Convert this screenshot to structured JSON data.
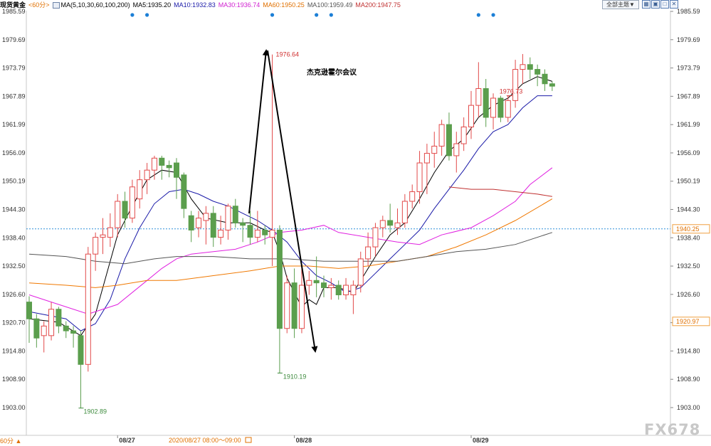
{
  "header": {
    "symbol": "现货黄金",
    "period": "<60分>",
    "ma_params": "MA(5,10,30,60,100,200)",
    "ma5": "MA5:1935.20",
    "ma10": "MA10:1932.83",
    "ma30": "MA30:1936.74",
    "ma60": "MA60:1950.25",
    "ma100": "MA100:1959.49",
    "ma200": "MA200:1947.75",
    "theme_button": "全部主题▼",
    "icon_names": [
      "grid-icon",
      "window-icon",
      "maximize-icon",
      "close-icon"
    ]
  },
  "bottom": {
    "period_button": "60分 ▲",
    "cursor_time": "2020/08/27 08:00～09:00",
    "calendar_icon": "calendar-icon",
    "watermark": "FX678"
  },
  "colors": {
    "up": "#e24a4a",
    "down": "#5b9e4d",
    "ma5": "#000000",
    "ma10": "#1a1aa8",
    "ma30": "#e020e0",
    "ma60": "#f07800",
    "ma100": "#555555",
    "ma200": "#c03030",
    "price_line": "#2e8fd8",
    "axis_text": "#333333"
  },
  "chart_data": {
    "type": "candlestick",
    "y_ticks": [
      "1985.59",
      "1979.69",
      "1973.79",
      "1967.89",
      "1961.99",
      "1956.09",
      "1950.19",
      "1944.30",
      "1938.40",
      "1932.50",
      "1926.60",
      "1920.70",
      "1914.80",
      "1908.90",
      "1903.00"
    ],
    "ylim": [
      1903.0,
      1985.59
    ],
    "x_labels": [
      {
        "label": "08/27",
        "index": 12
      },
      {
        "label": "08/28",
        "index": 36
      },
      {
        "label": "08/29",
        "index": 60
      }
    ],
    "current_price": {
      "label": "1940.25",
      "value": 1940.25
    },
    "side_badge": {
      "label": "1920.97",
      "value": 1920.97
    },
    "annotations": {
      "high": {
        "label": "1976.64",
        "index": 33
      },
      "high2": {
        "label": "1976.73",
        "index": 65
      },
      "low": {
        "label": "1902.89",
        "index": 7
      },
      "low2": {
        "label": "1910.19",
        "index": 34
      },
      "event_text": "杰克逊霍尔会议"
    },
    "event_markers": [
      14,
      16,
      33,
      39,
      41,
      61,
      63
    ],
    "candles": [
      {
        "o": 1925.0,
        "c": 1921.5,
        "h": 1926.2,
        "l": 1916.5
      },
      {
        "o": 1921.5,
        "c": 1917.5,
        "h": 1922.5,
        "l": 1915.5
      },
      {
        "o": 1918.0,
        "c": 1920.0,
        "h": 1921.0,
        "l": 1914.5
      },
      {
        "o": 1918.0,
        "c": 1923.5,
        "h": 1925.0,
        "l": 1917.0
      },
      {
        "o": 1923.5,
        "c": 1920.0,
        "h": 1924.0,
        "l": 1918.5
      },
      {
        "o": 1920.0,
        "c": 1919.0,
        "h": 1921.0,
        "l": 1917.5
      },
      {
        "o": 1919.0,
        "c": 1918.5,
        "h": 1920.0,
        "l": 1915.5
      },
      {
        "o": 1918.0,
        "c": 1912.0,
        "h": 1919.0,
        "l": 1902.9
      },
      {
        "o": 1912.0,
        "c": 1935.0,
        "h": 1936.5,
        "l": 1910.5
      },
      {
        "o": 1935.0,
        "c": 1938.5,
        "h": 1939.5,
        "l": 1931.5
      },
      {
        "o": 1938.5,
        "c": 1939.0,
        "h": 1942.5,
        "l": 1935.0
      },
      {
        "o": 1938.5,
        "c": 1940.5,
        "h": 1943.5,
        "l": 1936.5
      },
      {
        "o": 1940.5,
        "c": 1946.0,
        "h": 1947.5,
        "l": 1938.5
      },
      {
        "o": 1946.0,
        "c": 1942.5,
        "h": 1948.0,
        "l": 1940.5
      },
      {
        "o": 1942.5,
        "c": 1949.0,
        "h": 1950.5,
        "l": 1941.5
      },
      {
        "o": 1946.5,
        "c": 1950.5,
        "h": 1952.5,
        "l": 1944.5
      },
      {
        "o": 1950.5,
        "c": 1952.5,
        "h": 1954.0,
        "l": 1947.5
      },
      {
        "o": 1952.5,
        "c": 1955.0,
        "h": 1955.5,
        "l": 1950.5
      },
      {
        "o": 1955.0,
        "c": 1953.5,
        "h": 1955.5,
        "l": 1950.5
      },
      {
        "o": 1953.5,
        "c": 1953.0,
        "h": 1954.5,
        "l": 1951.0
      },
      {
        "o": 1954.0,
        "c": 1951.0,
        "h": 1955.0,
        "l": 1946.5
      },
      {
        "o": 1951.5,
        "c": 1944.5,
        "h": 1952.0,
        "l": 1942.5
      },
      {
        "o": 1943.0,
        "c": 1940.0,
        "h": 1944.0,
        "l": 1937.5
      },
      {
        "o": 1940.5,
        "c": 1942.5,
        "h": 1944.0,
        "l": 1938.5
      },
      {
        "o": 1942.0,
        "c": 1943.5,
        "h": 1945.0,
        "l": 1937.0
      },
      {
        "o": 1943.5,
        "c": 1938.5,
        "h": 1945.0,
        "l": 1936.5
      },
      {
        "o": 1938.5,
        "c": 1940.0,
        "h": 1943.0,
        "l": 1937.0
      },
      {
        "o": 1940.0,
        "c": 1945.0,
        "h": 1945.5,
        "l": 1938.0
      },
      {
        "o": 1945.0,
        "c": 1941.5,
        "h": 1946.5,
        "l": 1940.5
      },
      {
        "o": 1941.5,
        "c": 1941.0,
        "h": 1942.5,
        "l": 1937.5
      },
      {
        "o": 1941.0,
        "c": 1938.5,
        "h": 1944.0,
        "l": 1937.0
      },
      {
        "o": 1938.5,
        "c": 1940.0,
        "h": 1944.0,
        "l": 1937.5
      },
      {
        "o": 1940.0,
        "c": 1939.0,
        "h": 1941.0,
        "l": 1937.0
      },
      {
        "o": 1938.5,
        "c": 1940.0,
        "h": 1976.6,
        "l": 1932.5
      },
      {
        "o": 1940.0,
        "c": 1919.5,
        "h": 1941.0,
        "l": 1910.2
      },
      {
        "o": 1919.5,
        "c": 1929.0,
        "h": 1930.5,
        "l": 1918.5
      },
      {
        "o": 1929.0,
        "c": 1919.5,
        "h": 1932.0,
        "l": 1917.5
      },
      {
        "o": 1919.5,
        "c": 1928.5,
        "h": 1932.5,
        "l": 1918.5
      },
      {
        "o": 1928.5,
        "c": 1929.5,
        "h": 1931.5,
        "l": 1926.5
      },
      {
        "o": 1929.5,
        "c": 1929.0,
        "h": 1934.5,
        "l": 1926.0
      },
      {
        "o": 1929.0,
        "c": 1928.0,
        "h": 1930.5,
        "l": 1926.0
      },
      {
        "o": 1928.0,
        "c": 1928.5,
        "h": 1930.0,
        "l": 1925.5
      },
      {
        "o": 1928.5,
        "c": 1926.5,
        "h": 1929.5,
        "l": 1925.5
      },
      {
        "o": 1926.5,
        "c": 1928.5,
        "h": 1930.0,
        "l": 1925.5
      },
      {
        "o": 1926.5,
        "c": 1928.5,
        "h": 1929.5,
        "l": 1922.5
      },
      {
        "o": 1928.5,
        "c": 1934.0,
        "h": 1935.5,
        "l": 1927.0
      },
      {
        "o": 1934.0,
        "c": 1936.5,
        "h": 1939.5,
        "l": 1932.5
      },
      {
        "o": 1936.5,
        "c": 1940.5,
        "h": 1941.5,
        "l": 1934.5
      },
      {
        "o": 1940.5,
        "c": 1942.0,
        "h": 1943.0,
        "l": 1938.5
      },
      {
        "o": 1942.0,
        "c": 1941.0,
        "h": 1945.5,
        "l": 1939.5
      },
      {
        "o": 1940.5,
        "c": 1941.5,
        "h": 1944.5,
        "l": 1939.0
      },
      {
        "o": 1941.5,
        "c": 1946.0,
        "h": 1947.5,
        "l": 1940.5
      },
      {
        "o": 1946.0,
        "c": 1948.0,
        "h": 1949.5,
        "l": 1944.5
      },
      {
        "o": 1948.0,
        "c": 1954.0,
        "h": 1956.5,
        "l": 1945.5
      },
      {
        "o": 1954.0,
        "c": 1956.0,
        "h": 1958.0,
        "l": 1947.5
      },
      {
        "o": 1956.0,
        "c": 1957.5,
        "h": 1960.5,
        "l": 1953.0
      },
      {
        "o": 1957.5,
        "c": 1962.0,
        "h": 1963.0,
        "l": 1955.5
      },
      {
        "o": 1962.0,
        "c": 1955.5,
        "h": 1964.5,
        "l": 1954.5
      },
      {
        "o": 1955.5,
        "c": 1958.0,
        "h": 1960.5,
        "l": 1952.0
      },
      {
        "o": 1958.0,
        "c": 1961.5,
        "h": 1963.5,
        "l": 1956.5
      },
      {
        "o": 1961.5,
        "c": 1966.0,
        "h": 1969.0,
        "l": 1959.0
      },
      {
        "o": 1966.0,
        "c": 1969.5,
        "h": 1975.0,
        "l": 1963.5
      },
      {
        "o": 1969.5,
        "c": 1963.5,
        "h": 1971.5,
        "l": 1961.5
      },
      {
        "o": 1963.5,
        "c": 1967.5,
        "h": 1968.5,
        "l": 1961.0
      },
      {
        "o": 1967.5,
        "c": 1963.5,
        "h": 1968.0,
        "l": 1962.5
      },
      {
        "o": 1963.5,
        "c": 1967.0,
        "h": 1968.0,
        "l": 1962.5
      },
      {
        "o": 1967.0,
        "c": 1973.5,
        "h": 1975.5,
        "l": 1965.5
      },
      {
        "o": 1973.5,
        "c": 1974.5,
        "h": 1976.7,
        "l": 1970.5
      },
      {
        "o": 1974.5,
        "c": 1973.5,
        "h": 1976.0,
        "l": 1971.5
      },
      {
        "o": 1973.5,
        "c": 1972.5,
        "h": 1974.5,
        "l": 1970.0
      },
      {
        "o": 1972.5,
        "c": 1970.5,
        "h": 1973.5,
        "l": 1969.0
      },
      {
        "o": 1970.5,
        "c": 1970.0,
        "h": 1971.0,
        "l": 1969.0
      }
    ],
    "ma_lines": {
      "ma5": [
        [
          0,
          1921.5
        ],
        [
          4,
          1920.8
        ],
        [
          7,
          1918.0
        ],
        [
          9,
          1922.5
        ],
        [
          12,
          1939.0
        ],
        [
          14,
          1945.0
        ],
        [
          16,
          1950.5
        ],
        [
          18,
          1952.5
        ],
        [
          20,
          1952.0
        ],
        [
          22,
          1946.5
        ],
        [
          24,
          1942.5
        ],
        [
          27,
          1941.5
        ],
        [
          30,
          1941.5
        ],
        [
          32,
          1940.0
        ],
        [
          33,
          1939.5
        ],
        [
          34,
          1935.5
        ],
        [
          35,
          1930.0
        ],
        [
          36,
          1927.0
        ],
        [
          37,
          1924.0
        ],
        [
          38,
          1925.5
        ],
        [
          39,
          1924.5
        ],
        [
          40,
          1928.0
        ],
        [
          42,
          1928.0
        ],
        [
          44,
          1927.0
        ],
        [
          45,
          1929.5
        ],
        [
          47,
          1934.5
        ],
        [
          49,
          1939.0
        ],
        [
          51,
          1941.5
        ],
        [
          53,
          1946.5
        ],
        [
          55,
          1952.0
        ],
        [
          57,
          1956.5
        ],
        [
          59,
          1959.0
        ],
        [
          61,
          1963.5
        ],
        [
          63,
          1966.0
        ],
        [
          65,
          1967.5
        ],
        [
          67,
          1970.5
        ],
        [
          69,
          1972.0
        ],
        [
          71,
          1971.0
        ]
      ],
      "ma10": [
        [
          0,
          1923.0
        ],
        [
          5,
          1921.5
        ],
        [
          7,
          1919.0
        ],
        [
          9,
          1920.5
        ],
        [
          11,
          1925.5
        ],
        [
          13,
          1934.0
        ],
        [
          15,
          1940.5
        ],
        [
          17,
          1945.5
        ],
        [
          19,
          1948.0
        ],
        [
          21,
          1948.5
        ],
        [
          23,
          1947.5
        ],
        [
          25,
          1946.0
        ],
        [
          27,
          1945.0
        ],
        [
          29,
          1943.5
        ],
        [
          31,
          1942.0
        ],
        [
          33,
          1940.0
        ],
        [
          35,
          1937.5
        ],
        [
          37,
          1933.5
        ],
        [
          39,
          1930.5
        ],
        [
          41,
          1929.0
        ],
        [
          43,
          1927.0
        ],
        [
          45,
          1928.0
        ],
        [
          47,
          1931.0
        ],
        [
          49,
          1934.0
        ],
        [
          51,
          1937.0
        ],
        [
          53,
          1940.0
        ],
        [
          55,
          1944.5
        ],
        [
          57,
          1948.5
        ],
        [
          59,
          1952.5
        ],
        [
          61,
          1957.0
        ],
        [
          63,
          1960.5
        ],
        [
          65,
          1962.0
        ],
        [
          67,
          1965.5
        ],
        [
          69,
          1968.0
        ],
        [
          71,
          1968.0
        ]
      ],
      "ma30": [
        [
          0,
          1926.5
        ],
        [
          4,
          1924.5
        ],
        [
          8,
          1922.5
        ],
        [
          12,
          1924.5
        ],
        [
          16,
          1929.5
        ],
        [
          18,
          1932.0
        ],
        [
          20,
          1934.0
        ],
        [
          22,
          1935.0
        ],
        [
          25,
          1935.5
        ],
        [
          28,
          1936.0
        ],
        [
          31,
          1937.5
        ],
        [
          34,
          1939.5
        ],
        [
          37,
          1940.0
        ],
        [
          40,
          1941.0
        ],
        [
          42,
          1939.5
        ],
        [
          46,
          1938.5
        ],
        [
          50,
          1937.5
        ],
        [
          53,
          1937.0
        ],
        [
          56,
          1939.0
        ],
        [
          60,
          1940.5
        ],
        [
          63,
          1943.0
        ],
        [
          66,
          1946.0
        ],
        [
          68,
          1949.5
        ],
        [
          71,
          1953.0
        ]
      ],
      "ma60": [
        [
          0,
          1929.0
        ],
        [
          5,
          1928.5
        ],
        [
          9,
          1928.0
        ],
        [
          12,
          1928.5
        ],
        [
          16,
          1929.5
        ],
        [
          20,
          1929.5
        ],
        [
          25,
          1930.5
        ],
        [
          30,
          1931.5
        ],
        [
          34,
          1932.5
        ],
        [
          38,
          1932.5
        ],
        [
          42,
          1932.0
        ],
        [
          46,
          1932.5
        ],
        [
          50,
          1933.5
        ],
        [
          54,
          1934.5
        ],
        [
          58,
          1936.5
        ],
        [
          62,
          1939.0
        ],
        [
          66,
          1942.0
        ],
        [
          71,
          1946.5
        ]
      ],
      "ma100": [
        [
          0,
          1935.0
        ],
        [
          5,
          1934.5
        ],
        [
          9,
          1933.5
        ],
        [
          13,
          1933.0
        ],
        [
          17,
          1934.0
        ],
        [
          20,
          1934.5
        ],
        [
          25,
          1934.5
        ],
        [
          30,
          1934.0
        ],
        [
          35,
          1934.0
        ],
        [
          40,
          1933.5
        ],
        [
          45,
          1933.5
        ],
        [
          50,
          1933.5
        ],
        [
          54,
          1934.5
        ],
        [
          58,
          1935.5
        ],
        [
          62,
          1936.0
        ],
        [
          66,
          1937.0
        ],
        [
          71,
          1939.5
        ]
      ],
      "ma200": [
        [
          57,
          1949.0
        ],
        [
          60,
          1948.5
        ],
        [
          63,
          1948.5
        ],
        [
          66,
          1948.0
        ],
        [
          69,
          1947.5
        ],
        [
          71,
          1947.0
        ]
      ]
    }
  }
}
